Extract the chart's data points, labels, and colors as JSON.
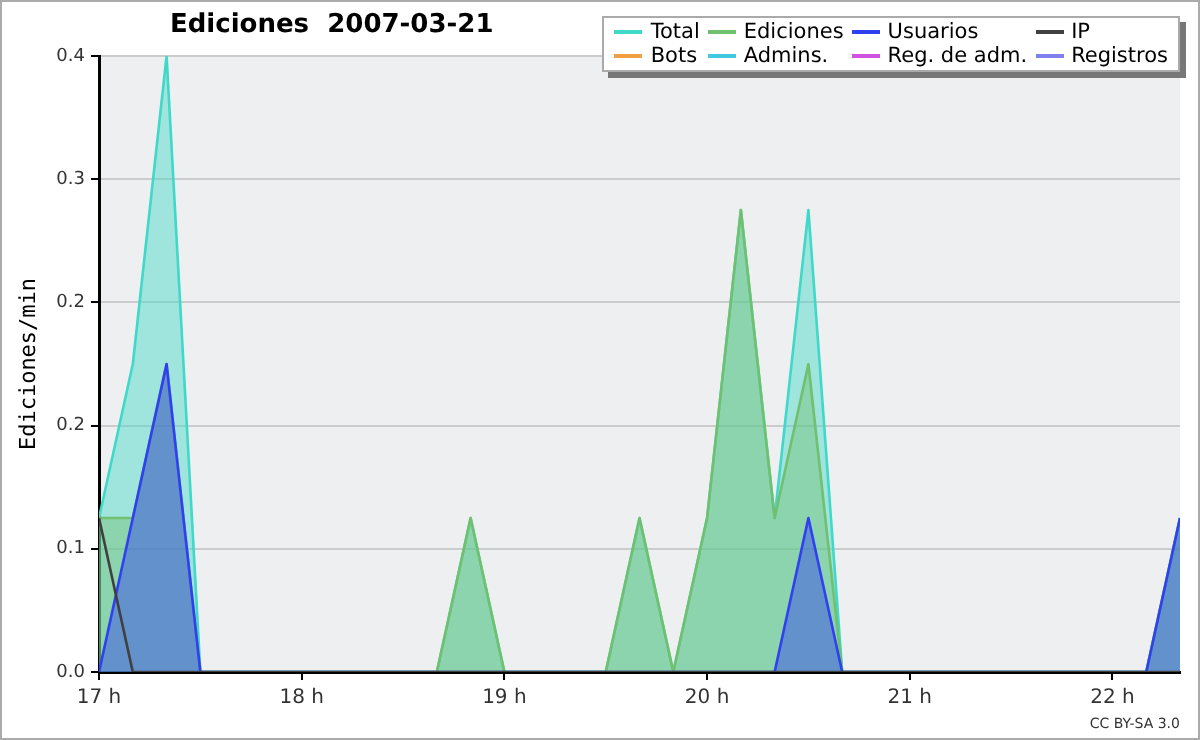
{
  "chart_data": {
    "type": "area",
    "title": "Ediciones  2007-03-21",
    "ylabel": "Ediciones/min",
    "annotations": [
      "CC BY-SA 3.0"
    ],
    "x": [
      17,
      17.1667,
      17.3333,
      17.5,
      17.6667,
      17.8333,
      18,
      18.1667,
      18.3333,
      18.5,
      18.6667,
      18.8333,
      19,
      19.1667,
      19.3333,
      19.5,
      19.6667,
      19.8333,
      20,
      20.1667,
      20.3333,
      20.5,
      20.6667,
      20.8333,
      21,
      21.1667,
      21.3333,
      21.5,
      21.6667,
      21.8333,
      22,
      22.1667,
      22.3333
    ],
    "xlim": [
      17,
      22.3333
    ],
    "xticks": [
      {
        "value": 17,
        "label": "17 h"
      },
      {
        "value": 18,
        "label": "18 h"
      },
      {
        "value": 19,
        "label": "19 h"
      },
      {
        "value": 20,
        "label": "20 h"
      },
      {
        "value": 21,
        "label": "21 h"
      },
      {
        "value": 22,
        "label": "22 h"
      }
    ],
    "ylim": [
      0,
      0.4
    ],
    "yticks": [
      {
        "value": 0,
        "label": "0.0"
      },
      {
        "value": 0.08,
        "label": "0.1"
      },
      {
        "value": 0.16,
        "label": "0.2"
      },
      {
        "value": 0.24,
        "label": "0.2"
      },
      {
        "value": 0.32,
        "label": "0.3"
      },
      {
        "value": 0.4,
        "label": "0.4"
      }
    ],
    "grid": "y",
    "legend": "top right",
    "marker": "none",
    "line_style": "solid",
    "series": [
      {
        "name": "Total",
        "color": "#40d8c8",
        "values": [
          0.1,
          0.2,
          0.4,
          0,
          0,
          0,
          0,
          0,
          0,
          0,
          0,
          0.1,
          0,
          0,
          0,
          0,
          0.1,
          0,
          0.1,
          0.3,
          0.1,
          0.3,
          0,
          0,
          0,
          0,
          0,
          0,
          0,
          0,
          0,
          0,
          0.1
        ]
      },
      {
        "name": "Ediciones",
        "color": "#70c070",
        "values": [
          0.1,
          0.1,
          0.2,
          0,
          0,
          0,
          0,
          0,
          0,
          0,
          0,
          0.1,
          0,
          0,
          0,
          0,
          0.1,
          0,
          0.1,
          0.3,
          0.1,
          0.2,
          0,
          0,
          0,
          0,
          0,
          0,
          0,
          0,
          0,
          0,
          0.1
        ]
      },
      {
        "name": "Usuarios",
        "color": "#3040f0",
        "values": [
          0,
          0.1,
          0.2,
          0,
          0,
          0,
          0,
          0,
          0,
          0,
          0,
          0,
          0,
          0,
          0,
          0,
          0,
          0,
          0,
          0,
          0,
          0.1,
          0,
          0,
          0,
          0,
          0,
          0,
          0,
          0,
          0,
          0,
          0.1
        ]
      },
      {
        "name": "IP",
        "type": "line",
        "color": "#404040",
        "values": [
          0.1,
          0,
          0,
          0,
          0,
          0,
          0,
          0,
          0,
          0,
          0,
          0,
          0,
          0,
          0,
          0,
          0,
          0,
          0,
          0,
          0,
          0,
          0,
          0,
          0,
          0,
          0,
          0,
          0,
          0,
          0,
          0,
          0
        ]
      },
      {
        "name": "Bots",
        "color": "#f0a040",
        "values": [
          null,
          null,
          null,
          null,
          null,
          null,
          null,
          null,
          null,
          null,
          null,
          null,
          null,
          null,
          null,
          null,
          null,
          null,
          null,
          null,
          null,
          null,
          null,
          null,
          null,
          null,
          null,
          null,
          null,
          null,
          null,
          null,
          null
        ]
      },
      {
        "name": "Admins.",
        "color": "#40c8e0",
        "values": [
          null,
          null,
          null,
          null,
          null,
          null,
          null,
          null,
          null,
          null,
          null,
          null,
          null,
          null,
          null,
          null,
          null,
          null,
          null,
          null,
          null,
          null,
          null,
          null,
          null,
          null,
          null,
          null,
          null,
          null,
          null,
          null,
          null
        ]
      },
      {
        "name": "Reg. de adm.",
        "color": "#d050e0",
        "values": [
          null,
          null,
          null,
          null,
          null,
          null,
          null,
          null,
          null,
          null,
          null,
          null,
          null,
          null,
          null,
          null,
          null,
          null,
          null,
          null,
          null,
          null,
          null,
          null,
          null,
          null,
          null,
          null,
          null,
          null,
          null,
          null,
          null
        ]
      },
      {
        "name": "Registros",
        "color": "#8080f0",
        "values": [
          null,
          null,
          null,
          null,
          null,
          null,
          null,
          null,
          null,
          null,
          null,
          null,
          null,
          null,
          null,
          null,
          null,
          null,
          null,
          null,
          null,
          null,
          null,
          null,
          null,
          null,
          null,
          null,
          null,
          null,
          null,
          null,
          null
        ]
      }
    ]
  }
}
